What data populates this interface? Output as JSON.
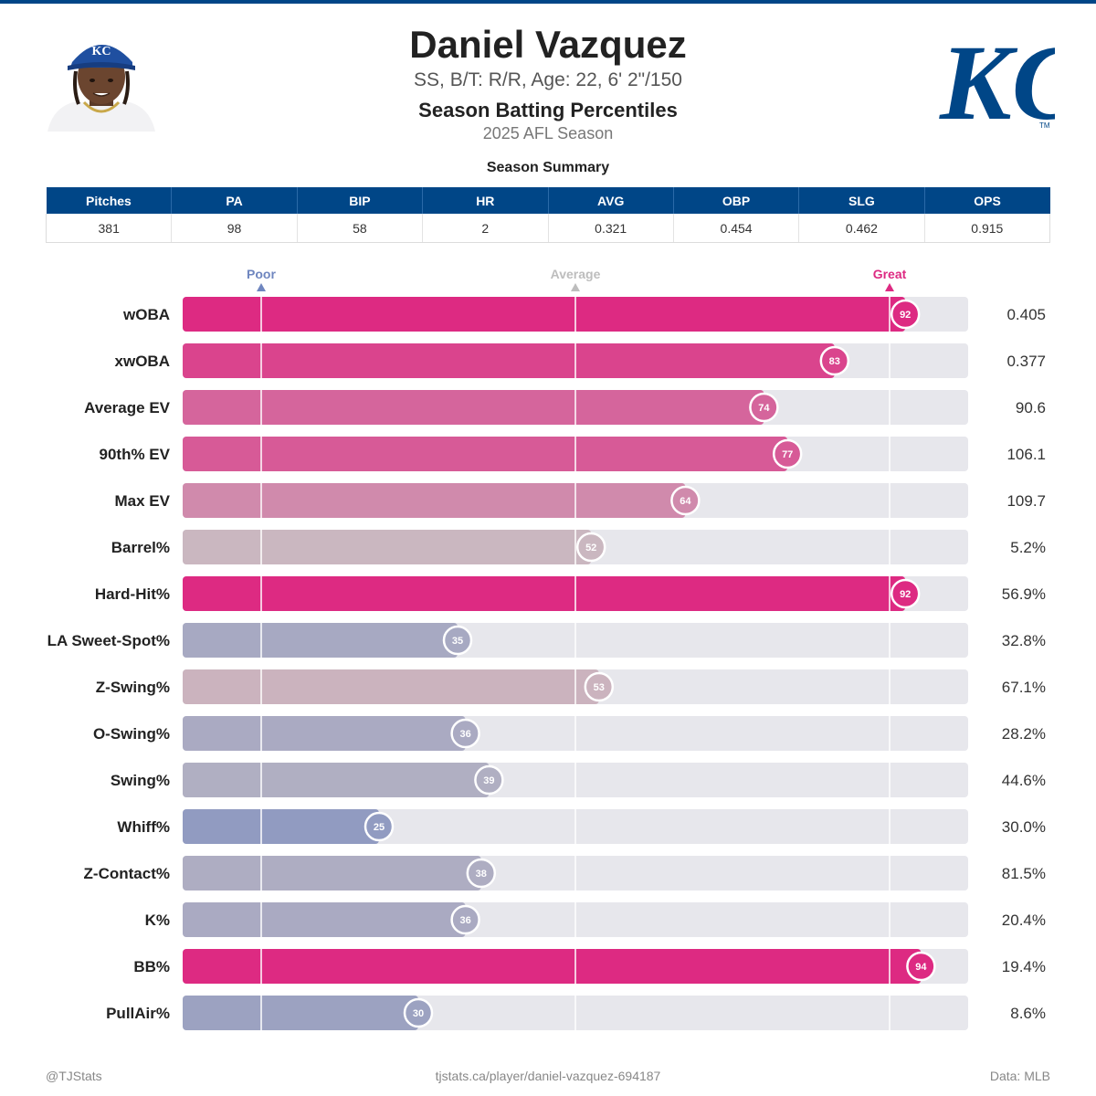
{
  "header": {
    "player_name": "Daniel Vazquez",
    "player_info": "SS, B/T: R/R, Age: 22, 6' 2\"/150",
    "title": "Season Batting Percentiles",
    "subtitle": "2025 AFL Season",
    "headshot_cap_text": "KC",
    "logo_text": "KC",
    "logo_tm": "TM"
  },
  "summary": {
    "title": "Season Summary",
    "headers": [
      "Pitches",
      "PA",
      "BIP",
      "HR",
      "AVG",
      "OBP",
      "SLG",
      "OPS"
    ],
    "values": [
      "381",
      "98",
      "58",
      "2",
      "0.321",
      "0.454",
      "0.462",
      "0.915"
    ]
  },
  "chart_data": {
    "type": "bar",
    "orientation": "horizontal",
    "x_range": [
      0,
      100
    ],
    "reference_markers": [
      {
        "label": "Poor",
        "value": 10,
        "color": "#6f86bf"
      },
      {
        "label": "Average",
        "value": 50,
        "color": "#bdbdbd"
      },
      {
        "label": "Great",
        "value": 90,
        "color": "#dd2a82"
      }
    ],
    "metrics": [
      {
        "label": "wOBA",
        "percentile": 92,
        "value": "0.405"
      },
      {
        "label": "xwOBA",
        "percentile": 83,
        "value": "0.377"
      },
      {
        "label": "Average EV",
        "percentile": 74,
        "value": "90.6"
      },
      {
        "label": "90th% EV",
        "percentile": 77,
        "value": "106.1"
      },
      {
        "label": "Max EV",
        "percentile": 64,
        "value": "109.7"
      },
      {
        "label": "Barrel%",
        "percentile": 52,
        "value": "5.2%"
      },
      {
        "label": "Hard-Hit%",
        "percentile": 92,
        "value": "56.9%"
      },
      {
        "label": "LA Sweet-Spot%",
        "percentile": 35,
        "value": "32.8%"
      },
      {
        "label": "Z-Swing%",
        "percentile": 53,
        "value": "67.1%"
      },
      {
        "label": "O-Swing%",
        "percentile": 36,
        "value": "28.2%"
      },
      {
        "label": "Swing%",
        "percentile": 39,
        "value": "44.6%"
      },
      {
        "label": "Whiff%",
        "percentile": 25,
        "value": "30.0%"
      },
      {
        "label": "Z-Contact%",
        "percentile": 38,
        "value": "81.5%"
      },
      {
        "label": "K%",
        "percentile": 36,
        "value": "20.4%"
      },
      {
        "label": "BB%",
        "percentile": 94,
        "value": "19.4%"
      },
      {
        "label": "PullAir%",
        "percentile": 30,
        "value": "8.6%"
      }
    ],
    "colors": {
      "great": "#dd2a82",
      "average": "#c9bec3",
      "poor": "#6f86bf",
      "track": "#e7e7ec",
      "brand": "#004687"
    }
  },
  "footer": {
    "left": "@TJStats",
    "center": "tjstats.ca/player/daniel-vazquez-694187",
    "right": "Data: MLB"
  }
}
